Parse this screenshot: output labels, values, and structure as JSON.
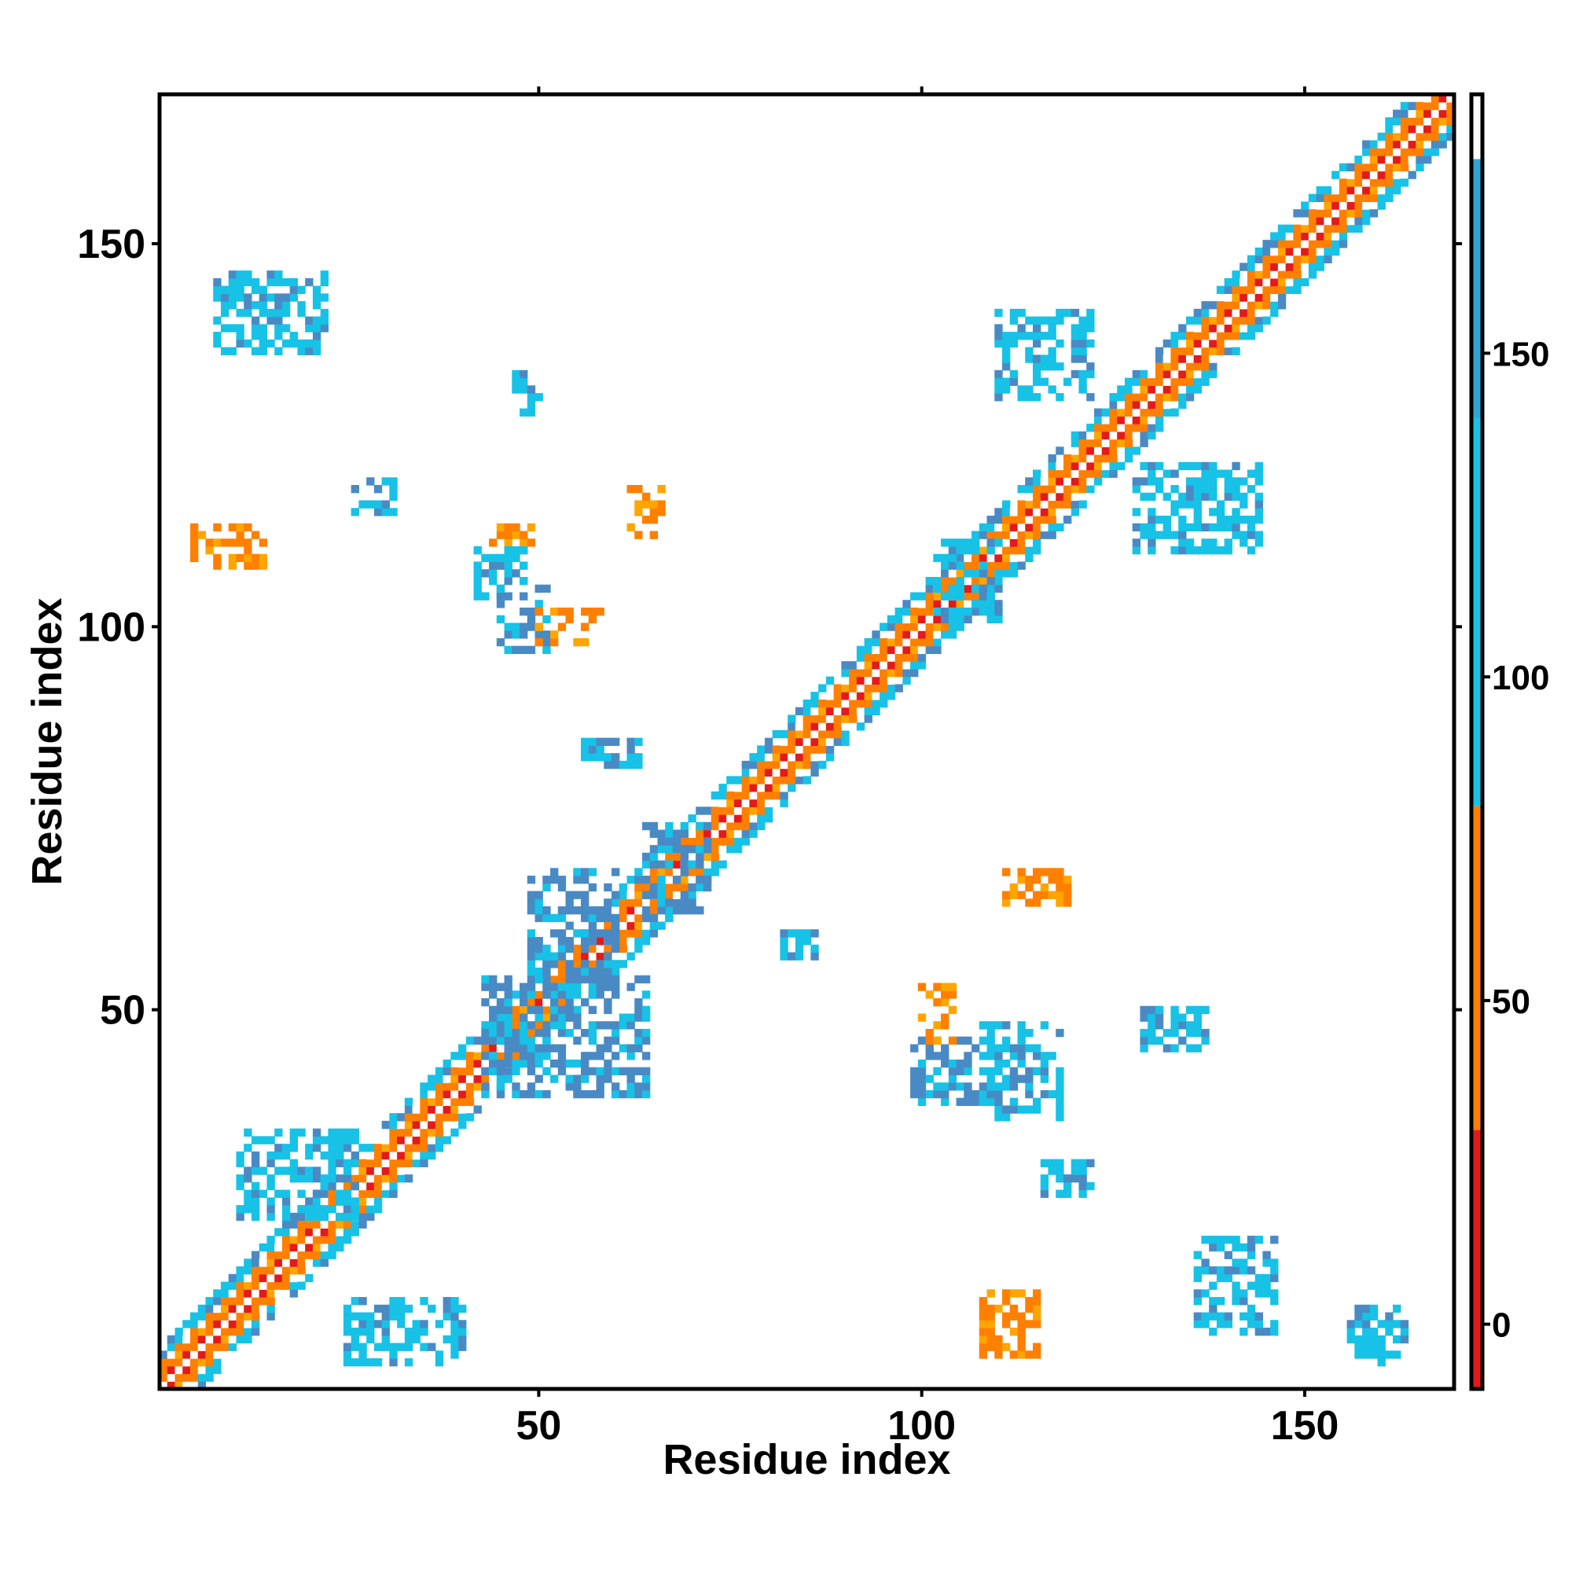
{
  "chart_data": {
    "type": "heatmap",
    "title": "",
    "xlabel": "Residue index",
    "ylabel": "Residue index",
    "xlim": [
      1,
      169
    ],
    "ylim": [
      1,
      169
    ],
    "x_ticks": [
      "50",
      "100",
      "150"
    ],
    "y_ticks": [
      "50",
      "100",
      "150"
    ],
    "colorbar": {
      "range": [
        -10,
        190
      ],
      "ticks": [
        "0",
        "50",
        "100",
        "150"
      ],
      "bands": [
        {
          "from": -10,
          "to": 30,
          "color": "#e31a1c"
        },
        {
          "from": 30,
          "to": 80,
          "color": "#ff7f00"
        },
        {
          "from": 80,
          "to": 180,
          "color": "#17c2e6"
        },
        {
          "from": 180,
          "to": 190,
          "color": "#ffffff"
        }
      ]
    },
    "band_colors": {
      "red": "#e31a1c",
      "orange": "#ff7f00",
      "gold": "#ffa500",
      "cyan": "#17c2e6",
      "steel": "#4a8ac4"
    },
    "diagonal": {
      "from": 1,
      "to": 169,
      "halfwidth": 5
    },
    "contact_regions": [
      {
        "x": [
          45,
          51
        ],
        "y": [
          97,
          105
        ],
        "value": 160
      },
      {
        "x": [
          50,
          58
        ],
        "y": [
          98,
          102
        ],
        "value": 30
      },
      {
        "x": [
          5,
          14
        ],
        "y": [
          108,
          113
        ],
        "value": 40
      },
      {
        "x": [
          8,
          22
        ],
        "y": [
          136,
          146
        ],
        "value": 130
      },
      {
        "x": [
          44,
          49
        ],
        "y": [
          110,
          113
        ],
        "value": 40
      },
      {
        "x": [
          42,
          48
        ],
        "y": [
          104,
          110
        ],
        "value": 130
      },
      {
        "x": [
          47,
          50
        ],
        "y": [
          128,
          133
        ],
        "value": 120
      },
      {
        "x": [
          62,
          66
        ],
        "y": [
          112,
          118
        ],
        "value": 50
      },
      {
        "x": [
          26,
          31
        ],
        "y": [
          115,
          119
        ],
        "value": 130
      },
      {
        "x": [
          11,
          26
        ],
        "y": [
          23,
          34
        ],
        "value": 130
      },
      {
        "x": [
          25,
          40
        ],
        "y": [
          4,
          12
        ],
        "value": 130
      },
      {
        "x": [
          43,
          64
        ],
        "y": [
          39,
          54
        ],
        "value": 160
      },
      {
        "x": [
          49,
          60
        ],
        "y": [
          52,
          68
        ],
        "value": 160
      },
      {
        "x": [
          64,
          72
        ],
        "y": [
          62,
          74
        ],
        "value": 160
      },
      {
        "x": [
          56,
          63
        ],
        "y": [
          82,
          85
        ],
        "value": 120
      },
      {
        "x": [
          82,
          86
        ],
        "y": [
          56,
          60
        ],
        "value": 120
      },
      {
        "x": [
          99,
          107
        ],
        "y": [
          38,
          46
        ],
        "value": 160
      },
      {
        "x": [
          100,
          104
        ],
        "y": [
          46,
          53
        ],
        "value": 40
      },
      {
        "x": [
          108,
          118
        ],
        "y": [
          36,
          48
        ],
        "value": 120
      },
      {
        "x": [
          111,
          119
        ],
        "y": [
          64,
          68
        ],
        "value": 40
      },
      {
        "x": [
          129,
          137
        ],
        "y": [
          45,
          50
        ],
        "value": 130
      },
      {
        "x": [
          116,
          122
        ],
        "y": [
          26,
          30
        ],
        "value": 130
      },
      {
        "x": [
          108,
          115
        ],
        "y": [
          5,
          13
        ],
        "value": 40
      },
      {
        "x": [
          136,
          146
        ],
        "y": [
          8,
          20
        ],
        "value": 120
      },
      {
        "x": [
          156,
          163
        ],
        "y": [
          4,
          11
        ],
        "value": 120
      },
      {
        "x": [
          110,
          122
        ],
        "y": [
          130,
          141
        ],
        "value": 130
      },
      {
        "x": [
          128,
          144
        ],
        "y": [
          110,
          121
        ],
        "value": 120
      },
      {
        "x": [
          102,
          110
        ],
        "y": [
          101,
          111
        ],
        "value": 120
      }
    ]
  }
}
